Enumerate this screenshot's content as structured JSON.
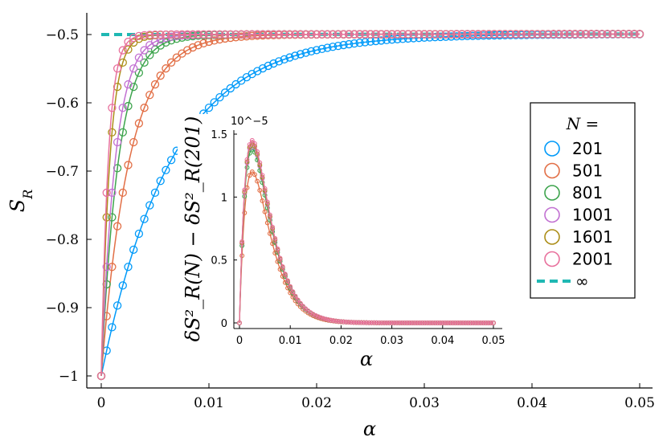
{
  "chart_data": [
    {
      "type": "line",
      "title": "",
      "xlabel": "α",
      "ylabel": "S_R",
      "xlim": [
        0,
        0.05
      ],
      "ylim": [
        -1.0,
        -0.485
      ],
      "xticks": [
        0,
        0.01,
        0.02,
        0.03,
        0.04,
        0.05
      ],
      "xtick_labels": [
        "0",
        "0.01",
        "0.02",
        "0.03",
        "0.04",
        "0.05"
      ],
      "yticks": [
        -1.0,
        -0.9,
        -0.8,
        -0.7,
        -0.6,
        -0.5
      ],
      "ytick_labels": [
        "−1",
        "−0.9",
        "−0.8",
        "−0.7",
        "−0.6",
        "−0.5"
      ],
      "grid": false,
      "model": "S_R(α) ≈ -0.5 + 0.015·α − 0.5·exp(−α/τ)",
      "series": [
        {
          "name": "201",
          "color": "#009AF9",
          "tau": 0.0065,
          "marker_step": 0.0005
        },
        {
          "name": "501",
          "color": "#E26F46",
          "tau": 0.0026,
          "marker_step": 0.0005
        },
        {
          "name": "801",
          "color": "#3DA44D",
          "tau": 0.0016,
          "marker_step": 0.0005
        },
        {
          "name": "1001",
          "color": "#C271D2",
          "tau": 0.0013,
          "marker_step": 0.0005
        },
        {
          "name": "1601",
          "color": "#AC8E18",
          "tau": 0.0008,
          "marker_step": 0.0005
        },
        {
          "name": "2001",
          "color": "#E8719D",
          "tau": 0.00065,
          "marker_step": 0.0005
        }
      ],
      "asymptote": {
        "name": "∞",
        "color": "#1FB8B3",
        "value_at_0": -0.5,
        "slope": 0.3,
        "x_range": [
          0,
          0.05
        ]
      },
      "legend": {
        "title": "N =",
        "placement": "right",
        "entries": [
          "201",
          "501",
          "801",
          "1001",
          "1601",
          "2001",
          "∞"
        ]
      }
    },
    {
      "type": "line",
      "title": "",
      "xlabel": "α",
      "ylabel": "δS²_R(N) − δS²_R(201)",
      "xlim": [
        0,
        0.05
      ],
      "ylim": [
        0,
        1.5
      ],
      "y_multiplier": "10^−5",
      "xticks": [
        0,
        0.01,
        0.02,
        0.03,
        0.04,
        0.05
      ],
      "xtick_labels": [
        "0",
        "0.01",
        "0.02",
        "0.03",
        "0.04",
        "0.05"
      ],
      "yticks": [
        0,
        0.5,
        1,
        1.5
      ],
      "ytick_labels": [
        "0",
        "0.5",
        "1",
        "1.5"
      ],
      "grid": false,
      "model": "y(α) = A·(α/0.0025)·exp(1 − α/0.0025)",
      "series": [
        {
          "name": "501",
          "color": "#E26F46",
          "peak": 1.2
        },
        {
          "name": "801",
          "color": "#3DA44D",
          "peak": 1.38
        },
        {
          "name": "1001",
          "color": "#C271D2",
          "peak": 1.42
        },
        {
          "name": "1601",
          "color": "#AC8E18",
          "peak": 1.43
        },
        {
          "name": "2001",
          "color": "#E8719D",
          "peak": 1.45
        }
      ],
      "legend": {
        "placement": "none"
      }
    }
  ]
}
